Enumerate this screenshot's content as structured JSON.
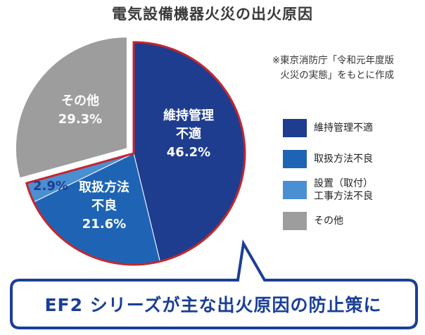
{
  "chart_data": {
    "type": "pie",
    "title": "電気設備機器火災の出火原因",
    "slices": [
      {
        "name": "維持管理不適",
        "value": 46.2,
        "label_lines": [
          "維持管理",
          "不適",
          "46.2%"
        ],
        "color": "#1e3d8f",
        "text_color": "#ffffff"
      },
      {
        "name": "取扱方法不良",
        "value": 21.6,
        "label_lines": [
          "取扱方法",
          "不良",
          "21.6%"
        ],
        "color": "#1f64b4",
        "text_color": "#ffffff"
      },
      {
        "name": "設置（取付）工事方法不良",
        "value": 2.9,
        "label_lines": [
          "2.9%"
        ],
        "color": "#4a8fd2",
        "text_color": "#1e3d8f"
      },
      {
        "name": "その他",
        "value": 29.3,
        "label_lines": [
          "その他",
          "29.3%"
        ],
        "color": "#9d9d9d",
        "text_color": "#ffffff"
      }
    ],
    "exploded_slices": [
      "その他"
    ],
    "outline_color": "#c4262e",
    "legend_position": "right"
  },
  "source_note": {
    "line1": "※東京消防庁「令和元年度版",
    "line2": "火災の実態」をもとに作成"
  },
  "legend": [
    {
      "label_lines": [
        "維持管理不適"
      ],
      "color": "#1e3d8f"
    },
    {
      "label_lines": [
        "取扱方法不良"
      ],
      "color": "#1f64b4"
    },
    {
      "label_lines": [
        "設置（取付）",
        "工事方法不良"
      ],
      "color": "#4a8fd2"
    },
    {
      "label_lines": [
        "その他"
      ],
      "color": "#9d9d9d"
    }
  ],
  "callout": {
    "text": "EF2 シリーズが主な出火原因の防止策に",
    "border_color": "#1a3f95"
  }
}
